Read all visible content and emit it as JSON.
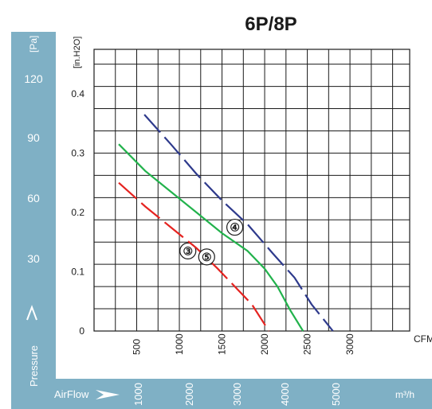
{
  "chart_data": {
    "type": "line",
    "title": "6P/8P",
    "xlabel": "CFM",
    "ylabel": "[in.H2O]",
    "x_ticks": [
      "500",
      "1000",
      "1500",
      "2000",
      "2500",
      "3000"
    ],
    "y_ticks": [
      "0",
      "0.1",
      "0.2",
      "0.3",
      "0.4"
    ],
    "xlim": [
      0,
      3700
    ],
    "ylim": [
      0,
      0.475
    ],
    "grid": true,
    "secondary_y": {
      "unit": "[Pa]",
      "ticks": [
        "120",
        "90",
        "60",
        "30"
      ],
      "label": "Pressure"
    },
    "secondary_x": {
      "label": "AirFlow",
      "unit": "m³/h",
      "ticks": [
        "1000",
        "2000",
        "3000",
        "4000",
        "5000"
      ]
    },
    "series": [
      {
        "name": "④",
        "color": "#2e3a8c",
        "style": "long-dash",
        "points": [
          [
            590,
            0.365
          ],
          [
            900,
            0.315
          ],
          [
            1200,
            0.265
          ],
          [
            1500,
            0.22
          ],
          [
            1800,
            0.18
          ],
          [
            2100,
            0.13
          ],
          [
            2350,
            0.09
          ],
          [
            2550,
            0.045
          ],
          [
            2800,
            0.0
          ]
        ]
      },
      {
        "name": "③",
        "color": "#22b24c",
        "style": "solid",
        "points": [
          [
            290,
            0.315
          ],
          [
            600,
            0.27
          ],
          [
            900,
            0.235
          ],
          [
            1200,
            0.2
          ],
          [
            1500,
            0.165
          ],
          [
            1800,
            0.135
          ],
          [
            2000,
            0.105
          ],
          [
            2150,
            0.075
          ],
          [
            2300,
            0.035
          ],
          [
            2450,
            0.0
          ]
        ]
      },
      {
        "name": "⑤",
        "color": "#e52320",
        "style": "long-dash",
        "points": [
          [
            290,
            0.25
          ],
          [
            600,
            0.21
          ],
          [
            900,
            0.175
          ],
          [
            1200,
            0.14
          ],
          [
            1450,
            0.105
          ],
          [
            1650,
            0.075
          ],
          [
            1850,
            0.045
          ],
          [
            2050,
            0.0
          ]
        ]
      }
    ]
  }
}
